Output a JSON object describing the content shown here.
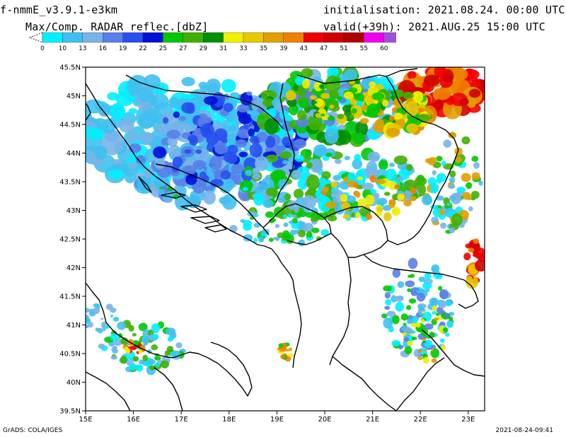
{
  "header": {
    "model": "f-nmmE_v3.9.1-e3km",
    "field": "Max/Comp. RADAR reflec.[dbZ]",
    "initialisation": "initialisation: 2021.08.24. 00:00 UTC",
    "valid": "valid(+39h): 2021.AUG.25 15:00 UTC"
  },
  "colorbar": {
    "labels": [
      "0",
      "10",
      "13",
      "16",
      "19",
      "22",
      "25",
      "27",
      "29",
      "31",
      "33",
      "35",
      "39",
      "43",
      "47",
      "51",
      "55",
      "60"
    ],
    "colors": [
      "#00f0ff",
      "#40c0f0",
      "#78b4e8",
      "#5a7ee8",
      "#2850f0",
      "#0010d8",
      "#00c800",
      "#40b000",
      "#009000",
      "#f0f000",
      "#e8c800",
      "#e0a000",
      "#f08000",
      "#f00000",
      "#d00000",
      "#b00000",
      "#f000f0",
      "#a050d8",
      "#000000"
    ]
  },
  "map": {
    "lat_labels": [
      "45.5N",
      "45N",
      "44.5N",
      "44N",
      "43.5N",
      "43N",
      "42.5N",
      "42N",
      "41.5N",
      "41N",
      "40.5N",
      "40N",
      "39.5N"
    ],
    "lon_labels": [
      "15E",
      "16E",
      "17E",
      "18E",
      "19E",
      "20E",
      "21E",
      "22E",
      "23E"
    ]
  },
  "footer": {
    "left": "GrADS: COLA/IGES",
    "right": "2021-08-24-09:41"
  }
}
